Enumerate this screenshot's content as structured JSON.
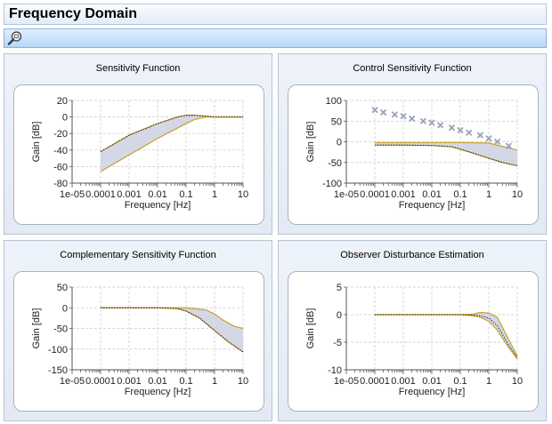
{
  "window": {
    "title": "Frequency Domain"
  },
  "toolbar": {
    "zoom_icon": "magnifier-zoom-icon"
  },
  "colors": {
    "band_fill": "#d3d7e6",
    "nominal_curve": "#c8a028",
    "bound_curve": "#1a1a1a",
    "marker": "#9aa2bb",
    "grid": "#c9c9c9"
  },
  "charts": [
    {
      "title": "Sensitivity Function",
      "chart_data": {
        "type": "area",
        "xlabel": "Frequency [Hz]",
        "ylabel": "Gain [dB]",
        "xscale": "log",
        "xlim": [
          1e-05,
          10
        ],
        "ylim": [
          -80,
          20
        ],
        "xtick_labels": [
          "1e-05",
          "0.0001",
          "0.001",
          "0.01",
          "0.1",
          "1",
          "10"
        ],
        "ytick_labels": [
          "20",
          "0",
          "-20",
          "-40",
          "-60",
          "-80"
        ],
        "yticks": [
          20,
          0,
          -20,
          -40,
          -60,
          -80
        ],
        "grid": true,
        "upper": {
          "x": [
            0.0001,
            0.001,
            0.01,
            0.05,
            0.1,
            0.2,
            0.5,
            1,
            10
          ],
          "y": [
            -42,
            -22,
            -8,
            0,
            2,
            2,
            1,
            0,
            0
          ]
        },
        "lower": {
          "x": [
            0.0001,
            0.001,
            0.01,
            0.1,
            0.2,
            0.5,
            1,
            2,
            10
          ],
          "y": [
            -66,
            -46,
            -26,
            -8,
            -3,
            0,
            0,
            0,
            0
          ]
        },
        "nominal": {
          "x": [
            0.0001,
            0.001,
            0.01,
            0.05,
            0.1,
            0.2,
            0.5,
            1,
            10
          ],
          "y": [
            -42,
            -22,
            -8,
            0,
            2,
            2,
            1,
            0,
            0
          ]
        }
      }
    },
    {
      "title": "Control Sensitivity Function",
      "chart_data": {
        "type": "area",
        "xlabel": "Frequency [Hz]",
        "ylabel": "Gain [dB]",
        "xscale": "log",
        "xlim": [
          1e-05,
          10
        ],
        "ylim": [
          -100,
          100
        ],
        "xtick_labels": [
          "1e-05",
          "0.0001",
          "0.001",
          "0.01",
          "0.1",
          "1",
          "10"
        ],
        "ytick_labels": [
          "100",
          "50",
          "0",
          "-50",
          "-100"
        ],
        "yticks": [
          100,
          50,
          0,
          -50,
          -100
        ],
        "grid": true,
        "upper": {
          "x": [
            0.0001,
            0.001,
            0.01,
            0.1,
            1,
            10
          ],
          "y": [
            -2,
            -2,
            -2,
            -2,
            -3,
            -20
          ]
        },
        "lower": {
          "x": [
            0.0001,
            0.001,
            0.01,
            0.05,
            0.1,
            0.3,
            1,
            3,
            10
          ],
          "y": [
            -8,
            -8,
            -9,
            -12,
            -18,
            -28,
            -40,
            -50,
            -58
          ]
        },
        "nominal": {
          "x": [
            0.0001,
            0.001,
            0.01,
            0.05,
            0.1,
            0.3,
            1,
            3,
            10
          ],
          "y": [
            -8,
            -8,
            -9,
            -12,
            -18,
            -28,
            -40,
            -50,
            -58
          ]
        },
        "markers": {
          "x": [
            0.0001,
            0.0002,
            0.0005,
            0.001,
            0.002,
            0.005,
            0.01,
            0.02,
            0.05,
            0.1,
            0.2,
            0.5,
            1,
            2,
            5
          ],
          "y": [
            77,
            71,
            66,
            62,
            56,
            50,
            46,
            40,
            34,
            28,
            22,
            16,
            8,
            0,
            -10
          ]
        }
      }
    },
    {
      "title": "Complementary Sensitivity Function",
      "chart_data": {
        "type": "area",
        "xlabel": "Frequency [Hz]",
        "ylabel": "Gain [dB]",
        "xscale": "log",
        "xlim": [
          1e-05,
          10
        ],
        "ylim": [
          -150,
          50
        ],
        "xtick_labels": [
          "1e-05",
          "0.0001",
          "0.001",
          "0.01",
          "0.1",
          "1",
          "10"
        ],
        "ytick_labels": [
          "50",
          "0",
          "-50",
          "-100",
          "-150"
        ],
        "yticks": [
          50,
          0,
          -50,
          -100,
          -150
        ],
        "grid": true,
        "upper": {
          "x": [
            0.0001,
            0.01,
            0.1,
            0.5,
            1,
            2,
            5,
            10
          ],
          "y": [
            0,
            0,
            0,
            -5,
            -15,
            -30,
            -45,
            -50
          ]
        },
        "lower": {
          "x": [
            0.0001,
            0.01,
            0.05,
            0.1,
            0.3,
            1,
            3,
            10
          ],
          "y": [
            0,
            0,
            -2,
            -8,
            -25,
            -55,
            -82,
            -107
          ]
        },
        "nominal": {
          "x": [
            0.0001,
            0.01,
            0.05,
            0.1,
            0.3,
            1,
            3,
            10
          ],
          "y": [
            0,
            0,
            -2,
            -8,
            -25,
            -55,
            -82,
            -107
          ]
        }
      }
    },
    {
      "title": "Observer Disturbance Estimation",
      "chart_data": {
        "type": "area",
        "xlabel": "Frequency [Hz]",
        "ylabel": "Gain [dB]",
        "xscale": "log",
        "xlim": [
          1e-05,
          10
        ],
        "ylim": [
          -10,
          5
        ],
        "xtick_labels": [
          "1e-05",
          "0.0001",
          "0.001",
          "0.01",
          "0.1",
          "1",
          "10"
        ],
        "ytick_labels": [
          "5",
          "0",
          "-5",
          "-10"
        ],
        "yticks": [
          5,
          0,
          -5,
          -10
        ],
        "grid": true,
        "upper": {
          "x": [
            0.0001,
            0.1,
            0.3,
            0.5,
            1,
            2,
            5,
            10
          ],
          "y": [
            0,
            0,
            0.1,
            0.4,
            0.3,
            -0.5,
            -4.5,
            -7.5
          ]
        },
        "lower": {
          "x": [
            0.0001,
            0.1,
            0.3,
            0.5,
            1,
            2,
            5,
            10
          ],
          "y": [
            0,
            0,
            -0.2,
            -0.5,
            -1.2,
            -2.8,
            -6,
            -8
          ]
        },
        "nominal": {
          "x": [
            0.0001,
            0.1,
            0.3,
            0.5,
            1,
            2,
            5,
            10
          ],
          "y": [
            0,
            0,
            -0.1,
            -0.2,
            -0.6,
            -2,
            -5.5,
            -7.8
          ]
        }
      }
    }
  ]
}
